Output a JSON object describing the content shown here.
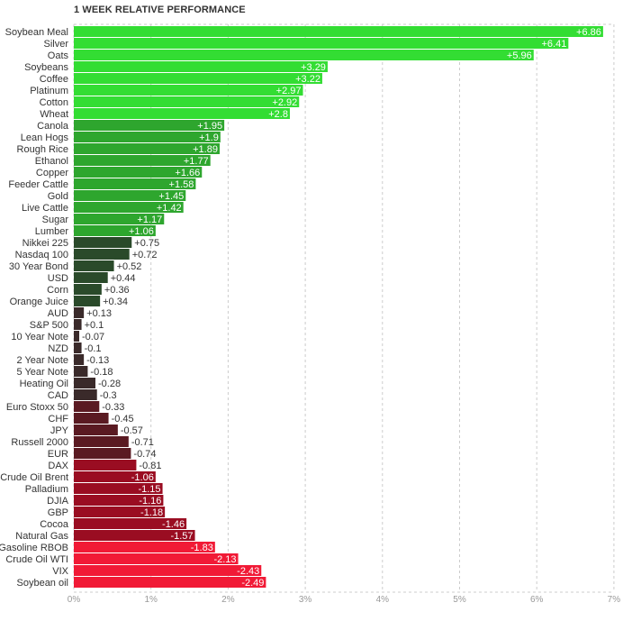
{
  "chart_data": {
    "type": "bar",
    "orientation": "horizontal",
    "title": "1 WEEK RELATIVE PERFORMANCE",
    "xlabel": "",
    "ylabel": "",
    "xlim": [
      0,
      7
    ],
    "x_ticks": [
      "0%",
      "1%",
      "2%",
      "3%",
      "4%",
      "5%",
      "6%",
      "7%"
    ],
    "grid": true,
    "categories": [
      "Soybean Meal",
      "Silver",
      "Oats",
      "Soybeans",
      "Coffee",
      "Platinum",
      "Cotton",
      "Wheat",
      "Canola",
      "Lean Hogs",
      "Rough Rice",
      "Ethanol",
      "Copper",
      "Feeder Cattle",
      "Gold",
      "Live Cattle",
      "Sugar",
      "Lumber",
      "Nikkei 225",
      "Nasdaq 100",
      "30 Year Bond",
      "USD",
      "Corn",
      "Orange Juice",
      "AUD",
      "S&P 500",
      "10 Year Note",
      "NZD",
      "2 Year Note",
      "5 Year Note",
      "Heating Oil",
      "CAD",
      "Euro Stoxx 50",
      "CHF",
      "JPY",
      "Russell 2000",
      "EUR",
      "DAX",
      "Crude Oil Brent",
      "Palladium",
      "DJIA",
      "GBP",
      "Cocoa",
      "Natural Gas",
      "Gasoline RBOB",
      "Crude Oil WTI",
      "VIX",
      "Soybean oil"
    ],
    "values": [
      6.86,
      6.41,
      5.96,
      3.29,
      3.22,
      2.97,
      2.92,
      2.8,
      1.95,
      1.9,
      1.89,
      1.77,
      1.66,
      1.58,
      1.45,
      1.42,
      1.17,
      1.06,
      0.75,
      0.72,
      0.52,
      0.44,
      0.36,
      0.34,
      0.13,
      0.1,
      -0.07,
      -0.1,
      -0.13,
      -0.18,
      -0.28,
      -0.3,
      -0.33,
      -0.45,
      -0.57,
      -0.71,
      -0.74,
      -0.81,
      -1.06,
      -1.15,
      -1.16,
      -1.18,
      -1.46,
      -1.57,
      -1.83,
      -2.13,
      -2.43,
      -2.49
    ],
    "value_labels": [
      "+6.86",
      "+6.41",
      "+5.96",
      "+3.29",
      "+3.22",
      "+2.97",
      "+2.92",
      "+2.8",
      "+1.95",
      "+1.9",
      "+1.89",
      "+1.77",
      "+1.66",
      "+1.58",
      "+1.45",
      "+1.42",
      "+1.17",
      "+1.06",
      "+0.75",
      "+0.72",
      "+0.52",
      "+0.44",
      "+0.36",
      "+0.34",
      "+0.13",
      "+0.1",
      "-0.07",
      "-0.1",
      "-0.13",
      "-0.18",
      "-0.28",
      "-0.3",
      "-0.33",
      "-0.45",
      "-0.57",
      "-0.71",
      "-0.74",
      "-0.81",
      "-1.06",
      "-1.15",
      "-1.16",
      "-1.18",
      "-1.46",
      "-1.57",
      "-1.83",
      "-2.13",
      "-2.43",
      "-2.49"
    ],
    "colors": {
      "strong_up": "#33dd33",
      "mid_up": "#2ea62e",
      "weak_up": "#2a4a2a",
      "neutral": "#3a2a2a",
      "weak_down": "#5a1a22",
      "mid_down": "#9a0d22",
      "strong_down": "#f11a36",
      "grid": "#cccccc",
      "label_text": "#333333",
      "tick_text": "#999999",
      "bar_label_text": "#ffffff"
    }
  }
}
